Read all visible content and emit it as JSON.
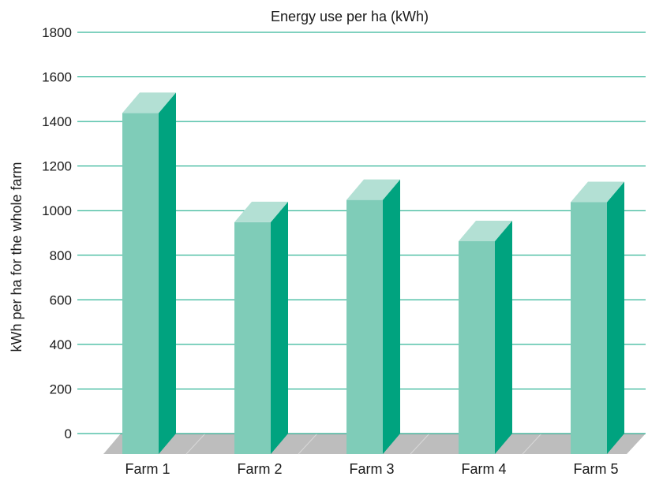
{
  "chart_data": {
    "type": "bar",
    "title": "Energy use per ha (kWh)",
    "xlabel": "",
    "ylabel": "kWh per ha for the whole farm",
    "categories": [
      "Farm 1",
      "Farm 2",
      "Farm 3",
      "Farm 4",
      "Farm 5"
    ],
    "values": [
      1530,
      1040,
      1140,
      955,
      1130
    ],
    "ylim": [
      0,
      1800
    ],
    "yticks": [
      0,
      200,
      400,
      600,
      800,
      1000,
      1200,
      1400,
      1600,
      1800
    ],
    "grid": true,
    "legend": "none"
  },
  "colors": {
    "bar_front": "#7fccb8",
    "bar_side": "#00a37f",
    "bar_top": "#b3e0d4",
    "grid": "#00a37f",
    "floor": "#bdbdbd",
    "floor_lines": "#d9d9d9"
  }
}
